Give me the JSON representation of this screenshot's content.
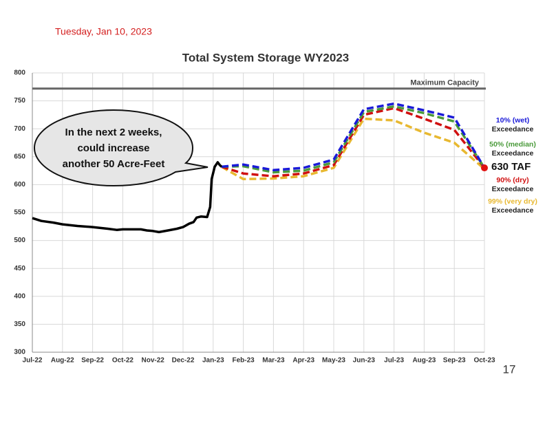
{
  "header": {
    "date": "Tuesday, Jan 10, 2023"
  },
  "page_number": "17",
  "chart_data": {
    "type": "line",
    "title": "Total System Storage WY2023",
    "xlim": [
      0,
      15
    ],
    "xticks": [
      {
        "value": 0,
        "label": "Jul-22"
      },
      {
        "value": 1,
        "label": "Aug-22"
      },
      {
        "value": 2,
        "label": "Sep-22"
      },
      {
        "value": 3,
        "label": "Oct-22"
      },
      {
        "value": 4,
        "label": "Nov-22"
      },
      {
        "value": 5,
        "label": "Dec-22"
      },
      {
        "value": 6,
        "label": "Jan-23"
      },
      {
        "value": 7,
        "label": "Feb-23"
      },
      {
        "value": 8,
        "label": "Mar-23"
      },
      {
        "value": 9,
        "label": "Apr-23"
      },
      {
        "value": 10,
        "label": "May-23"
      },
      {
        "value": 11,
        "label": "Jun-23"
      },
      {
        "value": 12,
        "label": "Jul-23"
      },
      {
        "value": 13,
        "label": "Aug-23"
      },
      {
        "value": 14,
        "label": "Sep-23"
      },
      {
        "value": 15,
        "label": "Oct-23"
      }
    ],
    "ylim": [
      300,
      800
    ],
    "yticks": [
      300,
      350,
      400,
      450,
      500,
      550,
      600,
      650,
      700,
      750,
      800
    ],
    "grid": true,
    "max_capacity": {
      "value": 772,
      "label": "Maximum Capacity"
    },
    "series": [
      {
        "color": "#000000",
        "dashed": false,
        "x": [
          0,
          0.3,
          0.7,
          1,
          1.5,
          2,
          2.5,
          2.8,
          3,
          3.3,
          3.6,
          3.8,
          4,
          4.2,
          4.5,
          4.8,
          5,
          5.2,
          5.35,
          5.45,
          5.6,
          5.8,
          5.9,
          5.95,
          6.05,
          6.15,
          6.22,
          6.28
        ],
        "values": [
          540,
          535,
          532,
          529,
          526,
          524,
          521,
          519,
          520,
          520,
          520,
          518,
          517,
          515,
          518,
          521,
          524,
          530,
          533,
          541,
          543,
          542,
          560,
          610,
          632,
          640,
          635,
          632
        ]
      },
      {
        "name": "10% (wet)",
        "color": "#1a1ad8",
        "dashed": true,
        "x": [
          6.28,
          7,
          8,
          9,
          10,
          11,
          12,
          13,
          14,
          15
        ],
        "values": [
          632,
          636,
          626,
          630,
          645,
          735,
          745,
          733,
          720,
          630
        ]
      },
      {
        "name": "50% (median)",
        "color": "#4a9a3a",
        "dashed": true,
        "x": [
          6.28,
          7,
          8,
          9,
          10,
          11,
          12,
          13,
          14,
          15
        ],
        "values": [
          632,
          633,
          622,
          625,
          640,
          730,
          740,
          728,
          713,
          630
        ]
      },
      {
        "name": "90% (dry)",
        "color": "#d01010",
        "dashed": true,
        "x": [
          6.28,
          7,
          8,
          9,
          10,
          11,
          12,
          13,
          14,
          15
        ],
        "values": [
          632,
          620,
          615,
          620,
          635,
          725,
          737,
          718,
          698,
          630
        ]
      },
      {
        "name": "99% (very dry)",
        "color": "#e8b830",
        "dashed": true,
        "x": [
          6.28,
          6.5,
          7,
          8,
          9,
          10,
          11,
          12,
          13,
          14,
          15
        ],
        "values": [
          632,
          625,
          610,
          611,
          615,
          630,
          718,
          715,
          693,
          675,
          628
        ]
      }
    ],
    "exceedance_label": "Exceedance",
    "end_value": 630,
    "end_label": "630 TAF",
    "callout": [
      "In the next 2 weeks,",
      "could increase",
      "another 50 Acre-Feet"
    ]
  }
}
